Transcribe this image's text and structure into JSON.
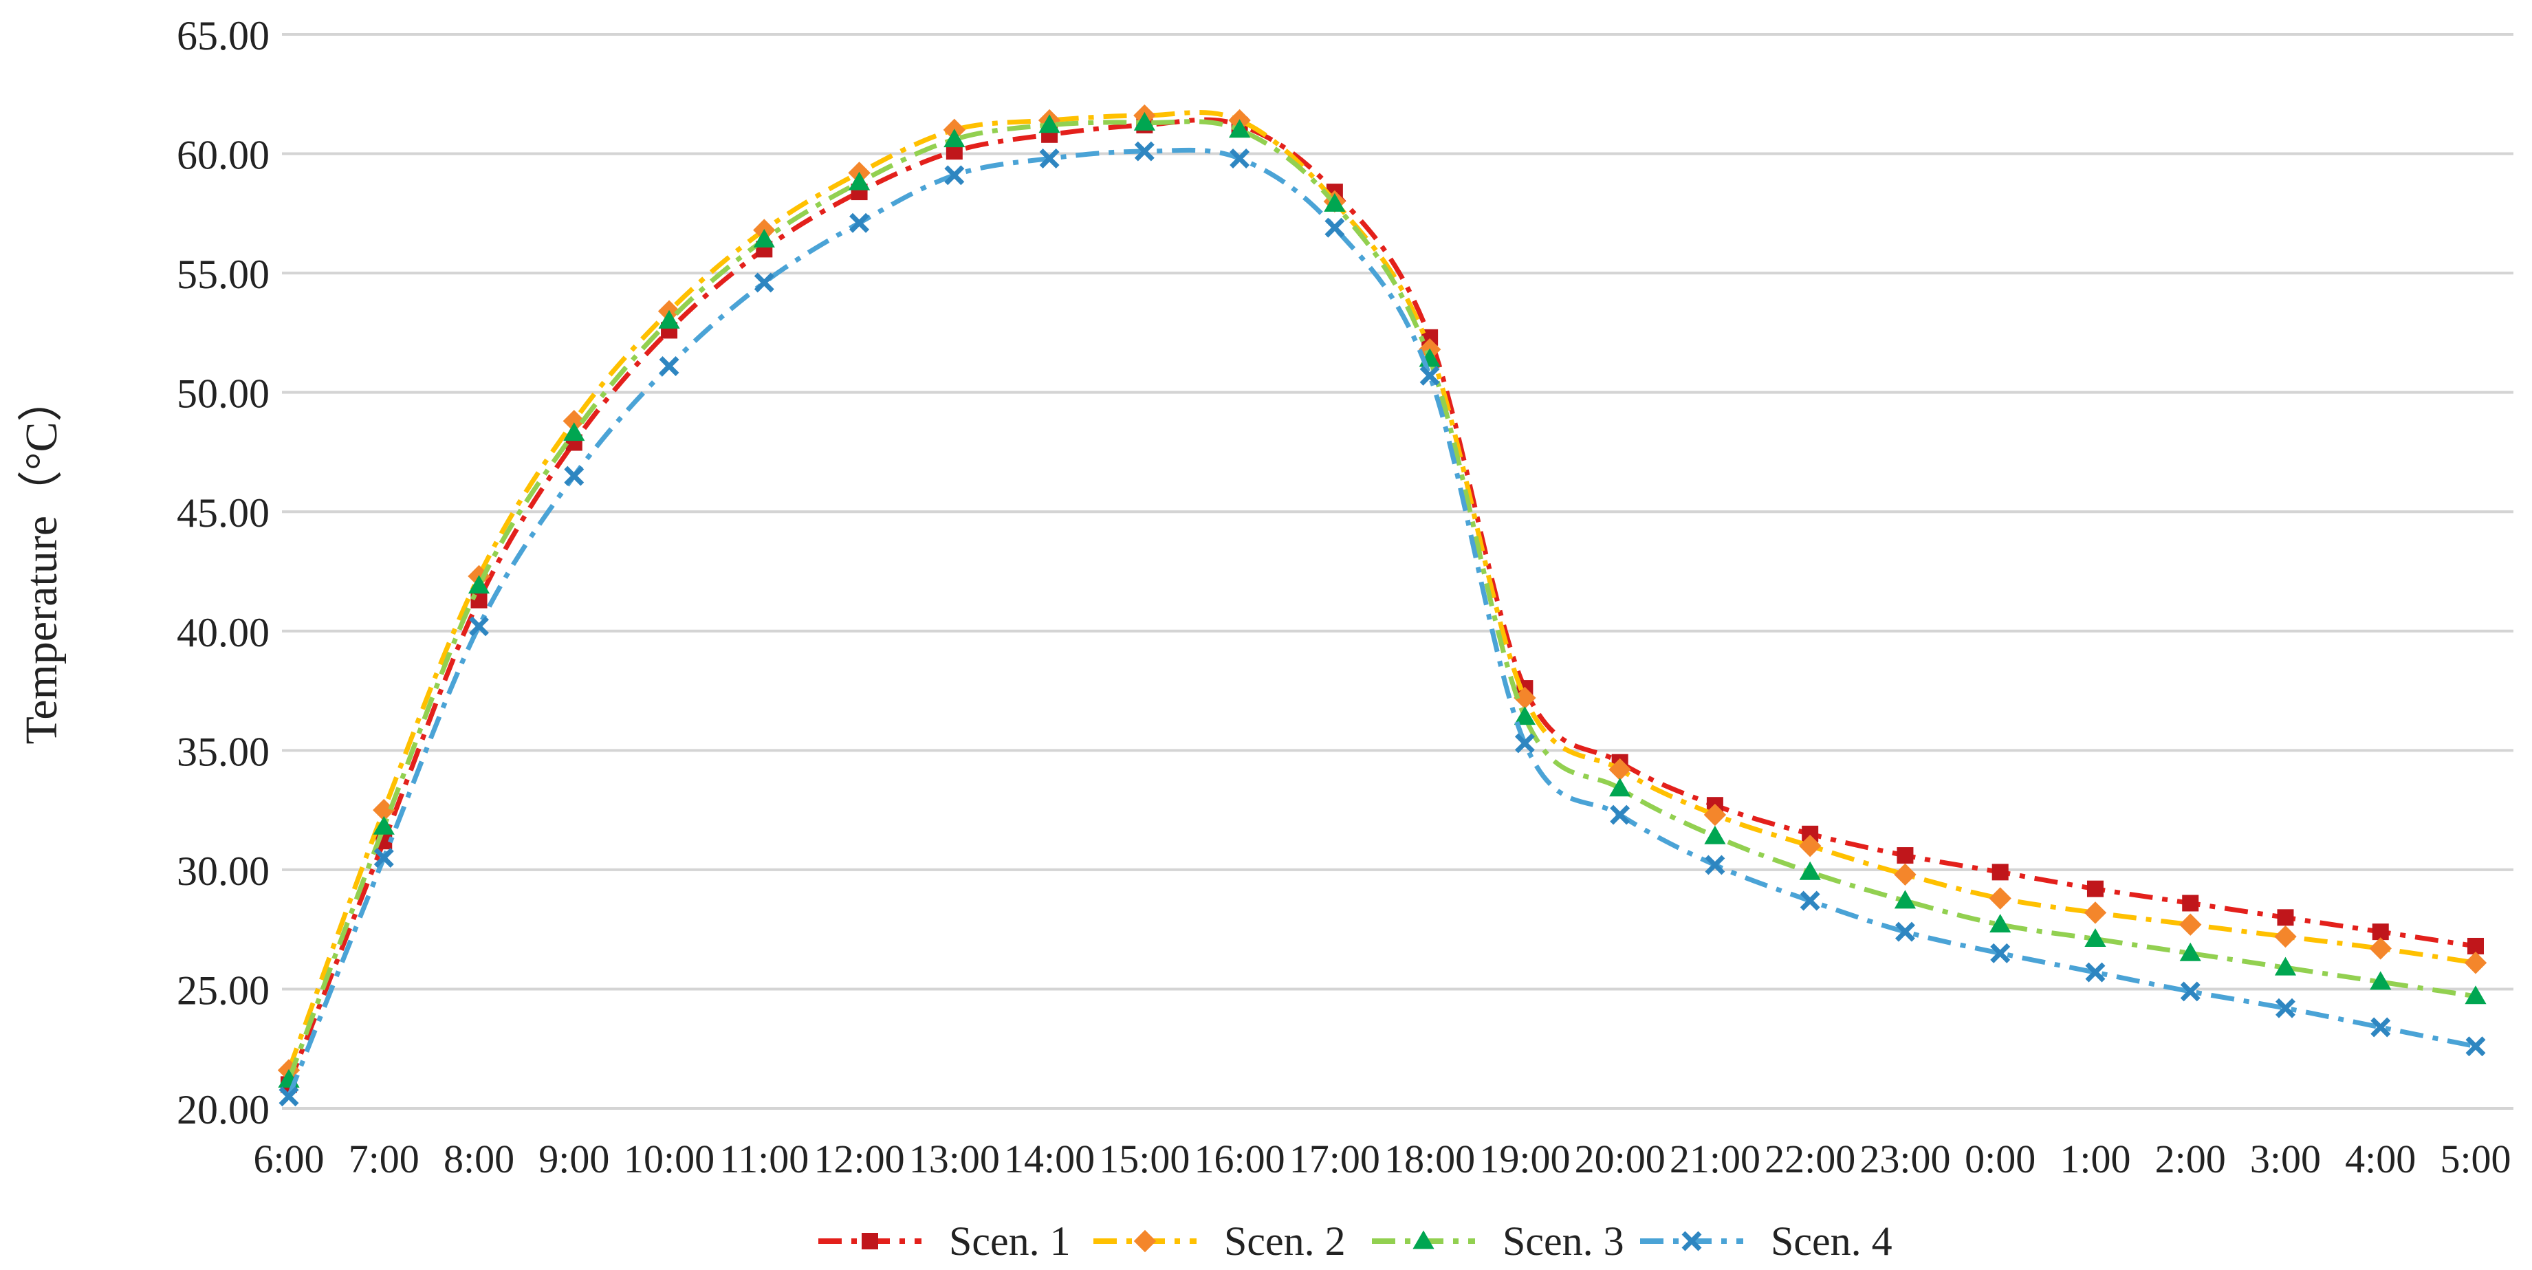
{
  "chart_data": {
    "type": "line",
    "title": "",
    "xlabel": "",
    "ylabel": "Temperature（°C）",
    "ylim": [
      20,
      65
    ],
    "yticks": [
      "20.00",
      "25.00",
      "30.00",
      "35.00",
      "40.00",
      "45.00",
      "50.00",
      "55.00",
      "60.00",
      "65.00"
    ],
    "grid": "horizontal",
    "legend": "bottom-center",
    "categories": [
      "6:00",
      "7:00",
      "8:00",
      "9:00",
      "10:00",
      "11:00",
      "12:00",
      "13:00",
      "14:00",
      "15:00",
      "16:00",
      "17:00",
      "18:00",
      "19:00",
      "20:00",
      "21:00",
      "22:00",
      "23:00",
      "0:00",
      "1:00",
      "2:00",
      "3:00",
      "4:00",
      "5:00"
    ],
    "series": [
      {
        "name": "Scen. 1",
        "line_color": "#e3201b",
        "marker_color": "#c0161b",
        "marker": "square",
        "dash": "dash-dot",
        "values": [
          21.0,
          31.2,
          41.3,
          47.9,
          52.6,
          56.0,
          58.4,
          60.1,
          60.8,
          61.2,
          61.2,
          58.4,
          52.3,
          37.6,
          34.5,
          32.7,
          31.5,
          30.6,
          29.9,
          29.2,
          28.6,
          28.0,
          27.4,
          26.8
        ]
      },
      {
        "name": "Scen. 2",
        "line_color": "#ffc000",
        "marker_color": "#f4862b",
        "marker": "diamond",
        "dash": "dash-dot",
        "values": [
          21.6,
          32.5,
          42.3,
          48.8,
          53.4,
          56.8,
          59.2,
          61.0,
          61.4,
          61.6,
          61.4,
          58.0,
          51.8,
          37.2,
          34.2,
          32.3,
          31.0,
          29.8,
          28.8,
          28.2,
          27.7,
          27.2,
          26.7,
          26.1
        ]
      },
      {
        "name": "Scen. 3",
        "line_color": "#92d050",
        "marker_color": "#00a651",
        "marker": "triangle",
        "dash": "dash-dot",
        "values": [
          21.2,
          31.8,
          41.9,
          48.3,
          53.0,
          56.4,
          58.8,
          60.6,
          61.2,
          61.3,
          61.0,
          57.9,
          51.4,
          36.4,
          33.4,
          31.4,
          29.9,
          28.7,
          27.7,
          27.1,
          26.5,
          25.9,
          25.3,
          24.7
        ]
      },
      {
        "name": "Scen. 4",
        "line_color": "#4aa3d6",
        "marker_color": "#2e86c1",
        "marker": "x",
        "dash": "dash-dot",
        "values": [
          20.5,
          30.5,
          40.2,
          46.5,
          51.1,
          54.6,
          57.1,
          59.1,
          59.8,
          60.1,
          59.8,
          56.9,
          50.7,
          35.3,
          32.3,
          30.2,
          28.7,
          27.4,
          26.5,
          25.7,
          24.9,
          24.2,
          23.4,
          22.6
        ]
      }
    ]
  }
}
